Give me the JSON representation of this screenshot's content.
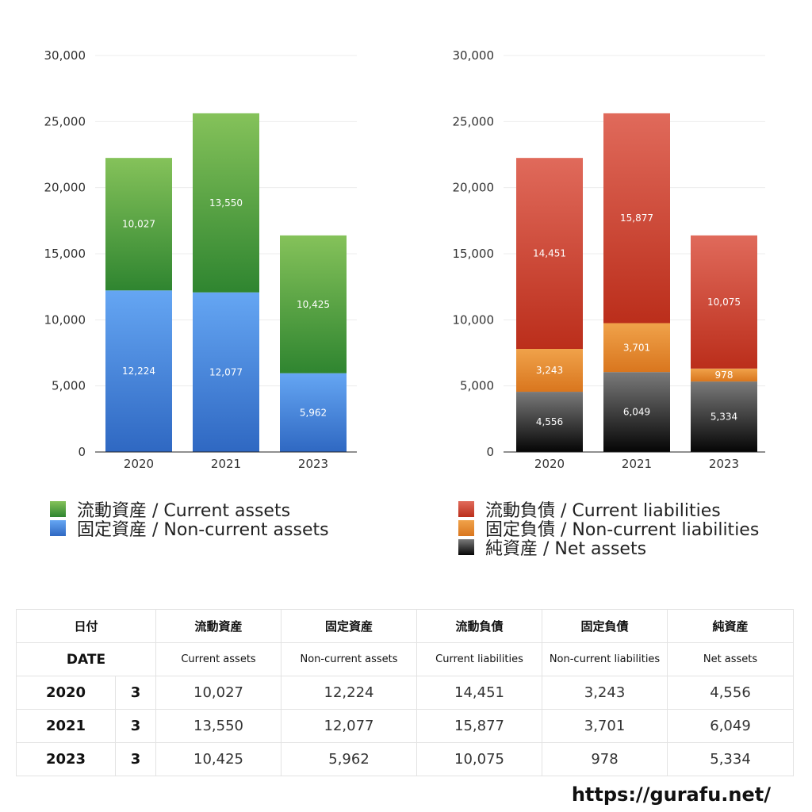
{
  "chart_data": [
    {
      "type": "bar",
      "stacked": true,
      "categories": [
        "2020",
        "2021",
        "2023"
      ],
      "ylim": [
        0,
        30000
      ],
      "yticks": [
        "0",
        "5,000",
        "10,000",
        "15,000",
        "20,000",
        "25,000",
        "30,000"
      ],
      "grid": true,
      "legend_position": "bottom",
      "series": [
        {
          "name": "固定資産 / Non-current assets",
          "values": [
            12224,
            12077,
            5962
          ],
          "labels": [
            "12,224",
            "12,077",
            "5,962"
          ],
          "color_top": "#65a6f3",
          "color_bottom": "#2f68c2"
        },
        {
          "name": "流動資産 / Current assets",
          "values": [
            10027,
            13550,
            10425
          ],
          "labels": [
            "10,027",
            "13,550",
            "10,425"
          ],
          "color_top": "#85c25a",
          "color_bottom": "#2f8530"
        }
      ],
      "legend": [
        {
          "label": "流動資産 / Current assets",
          "color_top": "#85c25a",
          "color_bottom": "#2f8530"
        },
        {
          "label": "固定資産 / Non-current assets",
          "color_top": "#65a6f3",
          "color_bottom": "#2f68c2"
        }
      ]
    },
    {
      "type": "bar",
      "stacked": true,
      "categories": [
        "2020",
        "2021",
        "2023"
      ],
      "ylim": [
        0,
        30000
      ],
      "yticks": [
        "0",
        "5,000",
        "10,000",
        "15,000",
        "20,000",
        "25,000",
        "30,000"
      ],
      "grid": true,
      "legend_position": "bottom",
      "series": [
        {
          "name": "純資産 / Net assets",
          "values": [
            4556,
            6049,
            5334
          ],
          "labels": [
            "4,556",
            "6,049",
            "5,334"
          ],
          "color_top": "#7a7a7a",
          "color_bottom": "#050505"
        },
        {
          "name": "固定負債 / Non-current liabilities",
          "values": [
            3243,
            3701,
            978
          ],
          "labels": [
            "3,243",
            "3,701",
            "978"
          ],
          "color_top": "#f0a24a",
          "color_bottom": "#d9761e"
        },
        {
          "name": "流動負債 / Current liabilities",
          "values": [
            14451,
            15877,
            10075
          ],
          "labels": [
            "14,451",
            "15,877",
            "10,075"
          ],
          "color_top": "#e06a5b",
          "color_bottom": "#bb2e1b"
        }
      ],
      "legend": [
        {
          "label": "流動負債 / Current liabilities",
          "color_top": "#e06a5b",
          "color_bottom": "#bb2e1b"
        },
        {
          "label": "固定負債 / Non-current liabilities",
          "color_top": "#f0a24a",
          "color_bottom": "#d9761e"
        },
        {
          "label": "純資産 / Net assets",
          "color_top": "#7a7a7a",
          "color_bottom": "#050505"
        }
      ]
    }
  ],
  "table": {
    "header_jp": {
      "date": "日付",
      "current_assets": "流動資産",
      "noncurrent_assets": "固定資産",
      "current_liabilities": "流動負債",
      "noncurrent_liabilities": "固定負債",
      "net_assets": "純資産"
    },
    "header_en": {
      "date": "DATE",
      "current_assets": "Current assets",
      "noncurrent_assets": "Non-current assets",
      "current_liabilities": "Current liabilities",
      "noncurrent_liabilities": "Non-current liabilities",
      "net_assets": "Net assets"
    },
    "rows": [
      {
        "year": "2020",
        "month": "3",
        "current_assets": "10,027",
        "noncurrent_assets": "12,224",
        "current_liabilities": "14,451",
        "noncurrent_liabilities": "3,243",
        "net_assets": "4,556"
      },
      {
        "year": "2021",
        "month": "3",
        "current_assets": "13,550",
        "noncurrent_assets": "12,077",
        "current_liabilities": "15,877",
        "noncurrent_liabilities": "3,701",
        "net_assets": "6,049"
      },
      {
        "year": "2023",
        "month": "3",
        "current_assets": "10,425",
        "noncurrent_assets": "5,962",
        "current_liabilities": "10,075",
        "noncurrent_liabilities": "978",
        "net_assets": "5,334"
      }
    ]
  },
  "footer": {
    "url": "https://gurafu.net/"
  }
}
